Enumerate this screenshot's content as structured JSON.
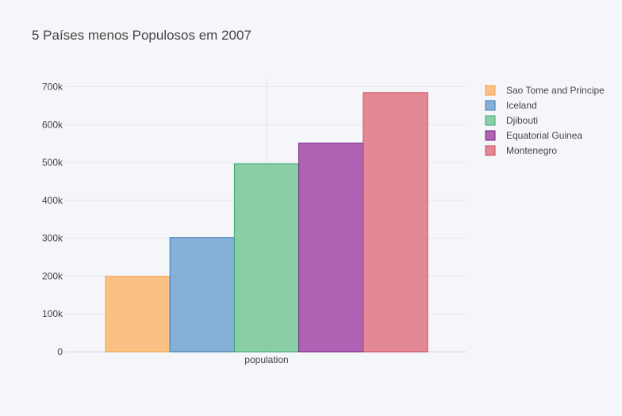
{
  "chart_data": {
    "type": "bar",
    "title": "5 Países menos Populosos em 2007",
    "categories": [
      "population"
    ],
    "xlabel": "",
    "ylabel": "",
    "ylim": [
      0,
      720000
    ],
    "yticks": [
      0,
      100000,
      200000,
      300000,
      400000,
      500000,
      600000,
      700000
    ],
    "ytick_labels": [
      "0",
      "100k",
      "200k",
      "300k",
      "400k",
      "500k",
      "600k",
      "700k"
    ],
    "grid": true,
    "legend_position": "right",
    "series": [
      {
        "name": "Sao Tome and Principe",
        "values": [
          199579
        ],
        "color": "#fdb366",
        "edge": "#f5a04a"
      },
      {
        "name": "Iceland",
        "values": [
          301931
        ],
        "color": "#6a9fd0",
        "edge": "#3f79b3"
      },
      {
        "name": "Djibouti",
        "values": [
          496374
        ],
        "color": "#6fc494",
        "edge": "#3ea66e"
      },
      {
        "name": "Equatorial Guinea",
        "values": [
          551201
        ],
        "color": "#9c3ea3",
        "edge": "#7a1f82"
      },
      {
        "name": "Montenegro",
        "values": [
          684736
        ],
        "color": "#df6e7c",
        "edge": "#c9485a"
      }
    ]
  }
}
